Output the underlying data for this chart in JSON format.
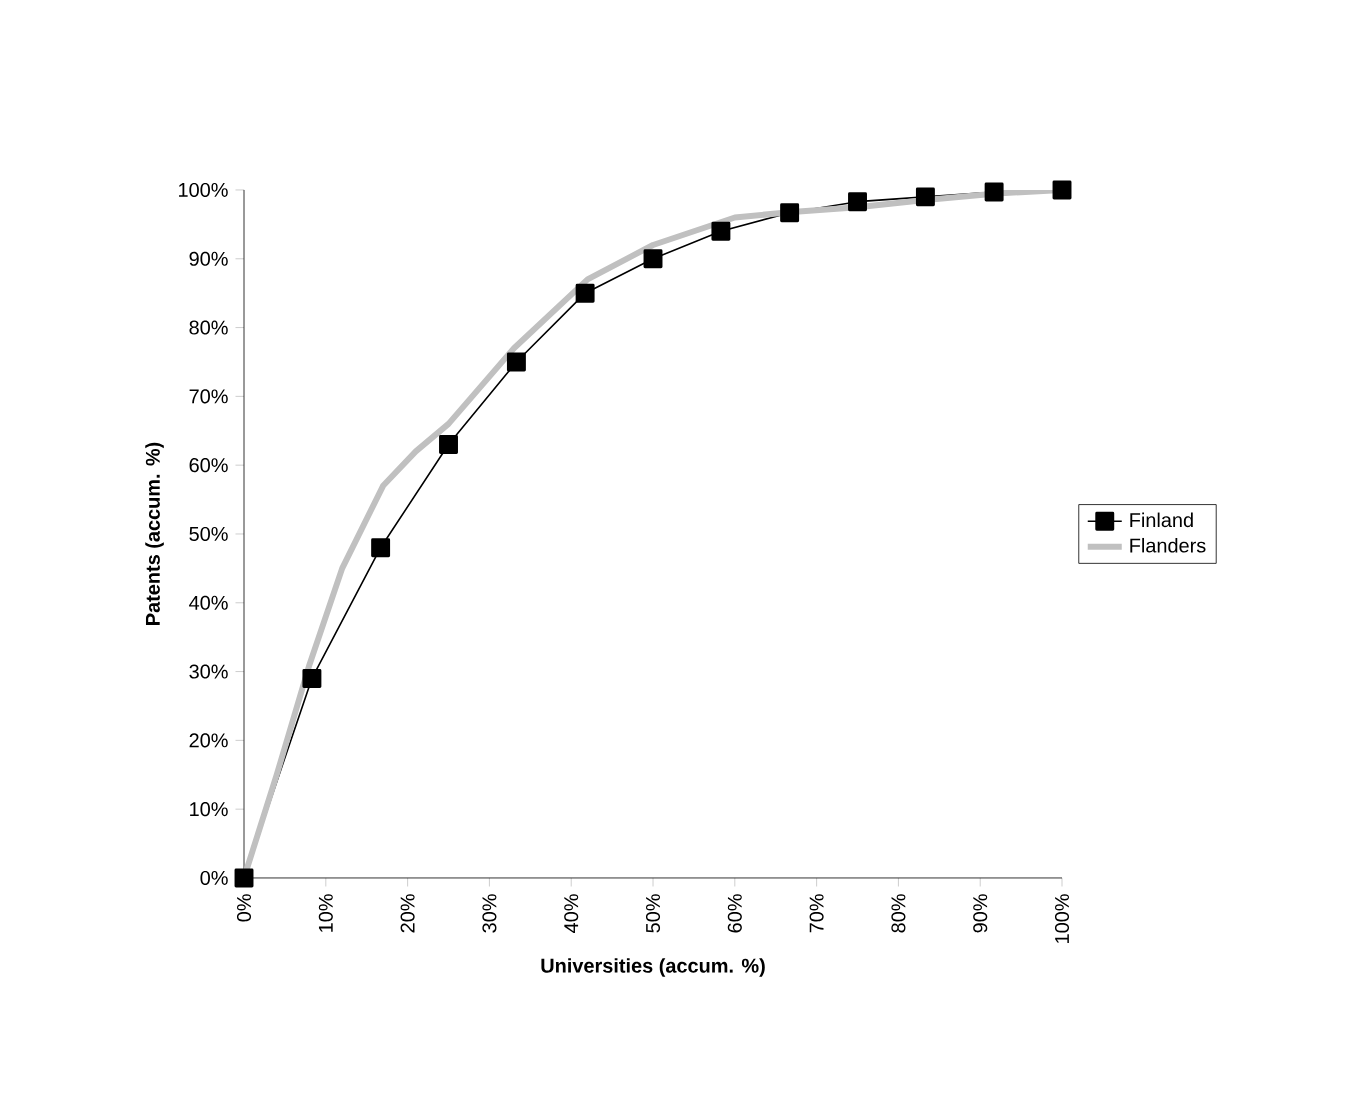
{
  "chart_data": {
    "type": "line",
    "xlabel": "Universities (accum. %)",
    "ylabel": "Patents (accum. %)",
    "xlim": [
      0,
      100
    ],
    "ylim": [
      0,
      100
    ],
    "xticks": [
      {
        "value": 0,
        "label": "0%"
      },
      {
        "value": 10,
        "label": "10%"
      },
      {
        "value": 20,
        "label": "20%"
      },
      {
        "value": 30,
        "label": "30%"
      },
      {
        "value": 40,
        "label": "40%"
      },
      {
        "value": 50,
        "label": "50%"
      },
      {
        "value": 60,
        "label": "60%"
      },
      {
        "value": 70,
        "label": "70%"
      },
      {
        "value": 80,
        "label": "80%"
      },
      {
        "value": 90,
        "label": "90%"
      },
      {
        "value": 100,
        "label": "100%"
      }
    ],
    "yticks": [
      {
        "value": 0,
        "label": "0%"
      },
      {
        "value": 10,
        "label": "10%"
      },
      {
        "value": 20,
        "label": "20%"
      },
      {
        "value": 30,
        "label": "30%"
      },
      {
        "value": 40,
        "label": "40%"
      },
      {
        "value": 50,
        "label": "50%"
      },
      {
        "value": 60,
        "label": "60%"
      },
      {
        "value": 70,
        "label": "70%"
      },
      {
        "value": 80,
        "label": "80%"
      },
      {
        "value": 90,
        "label": "90%"
      },
      {
        "value": 100,
        "label": "100%"
      }
    ],
    "legend": "right",
    "grid": false,
    "series": [
      {
        "name": "Finland",
        "color": "#000000",
        "marker": "square",
        "x": [
          0,
          8.3,
          16.7,
          25,
          33.3,
          41.7,
          50,
          58.3,
          66.7,
          75,
          83.3,
          91.7,
          100
        ],
        "values": [
          0,
          29,
          48,
          63,
          75,
          85,
          90,
          94,
          96.7,
          98.3,
          99,
          99.7,
          100
        ]
      },
      {
        "name": "Flanders",
        "color": "#c0c0c0",
        "marker": "none",
        "x": [
          0,
          4,
          8,
          12,
          17,
          21,
          25,
          33,
          42,
          50,
          60,
          67,
          75,
          83,
          92,
          100
        ],
        "values": [
          0,
          15,
          31,
          45,
          57,
          62,
          66,
          77,
          87,
          92,
          96,
          96.8,
          97.5,
          98.5,
          99.5,
          100
        ]
      }
    ]
  }
}
